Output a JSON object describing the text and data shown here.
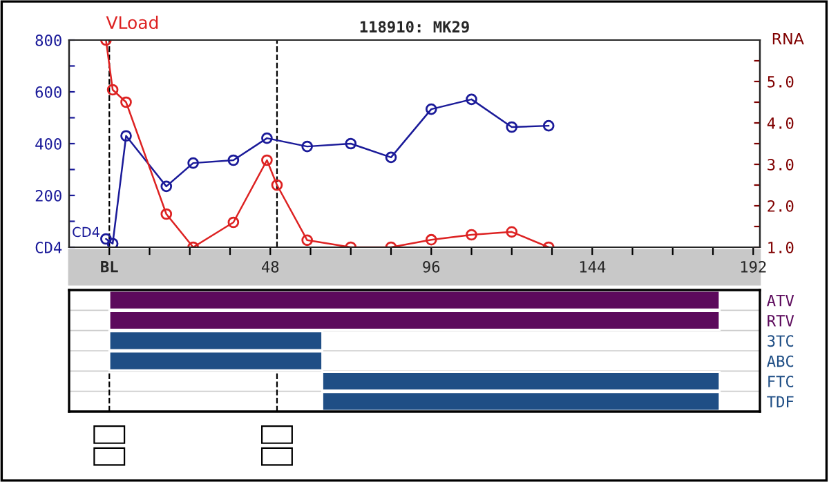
{
  "chart_data": [
    {
      "type": "line",
      "title": "118910: MK29",
      "y2label": "RNA",
      "xlim": [
        -12,
        194
      ],
      "xticks": [
        {
          "value": 0,
          "label": "BL"
        },
        {
          "value": 12,
          "label": null
        },
        {
          "value": 24,
          "label": null
        },
        {
          "value": 36,
          "label": null
        },
        48,
        {
          "value": 60,
          "label": null
        },
        {
          "value": 72,
          "label": null
        },
        {
          "value": 84,
          "label": null
        },
        96,
        {
          "value": 108,
          "label": null
        },
        {
          "value": 120,
          "label": null
        },
        {
          "value": 132,
          "label": null
        },
        144,
        {
          "value": 156,
          "label": null
        },
        {
          "value": 168,
          "label": null
        },
        {
          "value": 180,
          "label": null
        },
        192
      ],
      "ylim": [
        0,
        800
      ],
      "yticks": [
        {
          "value": 0,
          "label": "CD4"
        },
        {
          "value": 100,
          "label": null
        },
        200,
        {
          "value": 300,
          "label": null
        },
        400,
        {
          "value": 500,
          "label": null
        },
        600,
        {
          "value": 700,
          "label": null
        },
        800
      ],
      "y2lim": [
        1,
        6
      ],
      "y2ticks": [
        {
          "value": 1,
          "label": "1.0"
        },
        {
          "value": 1.5,
          "label": null
        },
        {
          "value": 2,
          "label": "2.0"
        },
        {
          "value": 2.5,
          "label": null
        },
        {
          "value": 3,
          "label": "3.0"
        },
        {
          "value": 3.5,
          "label": null
        },
        {
          "value": 4,
          "label": "4.0"
        },
        {
          "value": 4.5,
          "label": null
        },
        {
          "value": 5,
          "label": "5.0"
        },
        {
          "value": 5.5,
          "label": null
        }
      ],
      "marker": "circle",
      "line_style": "solid",
      "ref_lines": [
        {
          "axis": "x",
          "value": 0,
          "line_style": "dashed",
          "color": "#000000"
        },
        {
          "axis": "x",
          "value": 50,
          "line_style": "dashed",
          "color": "#000000"
        }
      ],
      "series": [
        {
          "name": "CD4",
          "color": "#1a1a99",
          "x": [
            -1,
            1,
            5,
            17,
            25,
            37,
            47,
            59,
            72,
            84,
            96,
            108,
            120,
            131
          ],
          "values": [
            32,
            14,
            430,
            235,
            325,
            336,
            421,
            389,
            400,
            347,
            533,
            571,
            464,
            469
          ]
        },
        {
          "name": "VLoad",
          "color": "#dd2222",
          "axis": "y2",
          "x": [
            -1,
            1,
            5,
            17,
            25,
            37,
            47,
            50,
            59,
            72,
            84,
            96,
            108,
            120,
            131
          ],
          "values": [
            6.0,
            4.8,
            4.5,
            1.8,
            1.0,
            1.6,
            3.1,
            2.5,
            1.17,
            1.0,
            1.0,
            1.18,
            1.3,
            1.37,
            1.0
          ]
        }
      ]
    },
    {
      "type": "bar",
      "orientation": "horizontal",
      "tick_labels": "y",
      "categories": [
        "ATV",
        "RTV",
        "3TC",
        "ABC",
        "FTC",
        "TDF"
      ],
      "xlim": [
        -12,
        194
      ],
      "values": [
        182,
        182,
        63.5,
        63.5,
        118.5,
        118.5
      ],
      "base": [
        0,
        0,
        0,
        0,
        63.5,
        63.5
      ],
      "colors": [
        "#5c0a5c",
        "#5c0a5c",
        "#1f4e85",
        "#1f4e85",
        "#1f4e85",
        "#1f4e85"
      ],
      "ref_lines": [
        {
          "axis": "x",
          "value": 0,
          "line_style": "dashed",
          "color": "#000000"
        },
        {
          "axis": "x",
          "value": 50,
          "line_style": "dashed",
          "color": "#000000"
        }
      ]
    }
  ]
}
